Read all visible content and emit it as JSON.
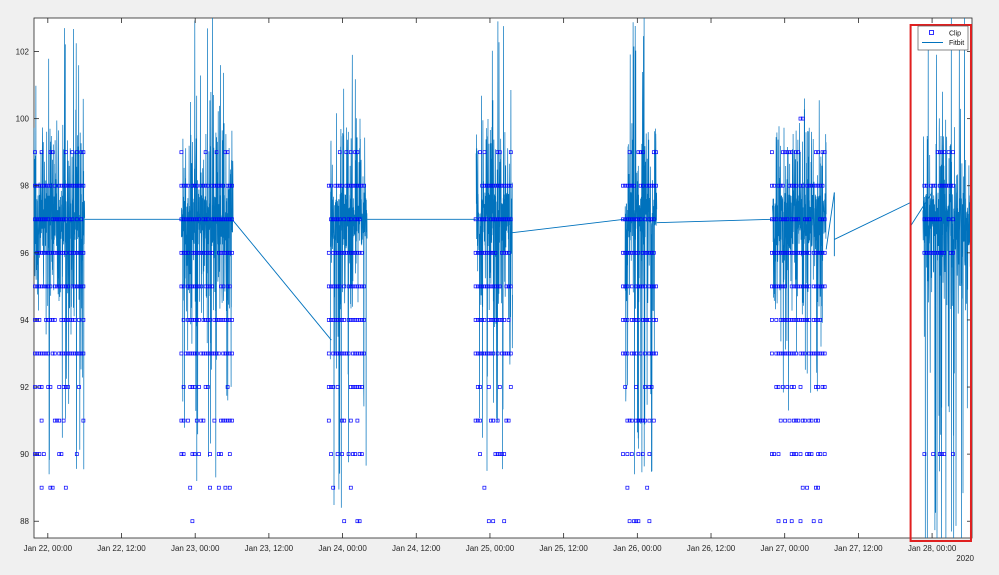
{
  "chart_data": {
    "type": "scatter",
    "x_type": "datetime",
    "x_ticks": [
      "Jan 22, 00:00",
      "Jan 22, 12:00",
      "Jan 23, 00:00",
      "Jan 23, 12:00",
      "Jan 24, 00:00",
      "Jan 24, 12:00",
      "Jan 25, 00:00",
      "Jan 25, 12:00",
      "Jan 26, 00:00",
      "Jan 26, 12:00",
      "Jan 27, 00:00",
      "Jan 27, 12:00",
      "Jan 28, 00:00"
    ],
    "x_year_label": "2020",
    "xlim": [
      "2020-01-21 21:45",
      "2020-01-28 06:30"
    ],
    "ylim": [
      87.5,
      103
    ],
    "y_ticks": [
      88,
      90,
      92,
      94,
      96,
      98,
      100,
      102
    ],
    "grid": false,
    "legend": {
      "entries": [
        "Clip",
        "Fitbit"
      ],
      "location": "top-right"
    },
    "annotation": "red rectangle highlighting Jan 28 data",
    "highlight_box": {
      "x_range": [
        "2020-01-27 20:30",
        "2020-01-28 06:20"
      ],
      "y_range": [
        87.5,
        103
      ]
    },
    "series": [
      {
        "name": "Clip",
        "marker": "square",
        "color": "#0000ff",
        "activity_blocks": [
          {
            "start": "2020-01-21 21:55",
            "end": "2020-01-22 06:00",
            "values": [
              97,
              98,
              96,
              95,
              94,
              93,
              92,
              91,
              90,
              89,
              99
            ]
          },
          {
            "start": "2020-01-22 21:45",
            "end": "2020-01-23 06:10",
            "values": [
              88,
              89,
              90,
              91,
              92,
              93,
              94,
              95,
              96,
              97,
              98,
              99
            ]
          },
          {
            "start": "2020-01-23 21:45",
            "end": "2020-01-24 03:30",
            "values": [
              88,
              89,
              90,
              91,
              92,
              93,
              94,
              95,
              96,
              97,
              98,
              99
            ]
          },
          {
            "start": "2020-01-24 21:40",
            "end": "2020-01-25 03:40",
            "values": [
              88,
              89,
              90,
              91,
              92,
              93,
              94,
              95,
              96,
              97,
              98,
              99
            ]
          },
          {
            "start": "2020-01-25 21:40",
            "end": "2020-01-26 03:10",
            "values": [
              88,
              89,
              90,
              91,
              92,
              93,
              94,
              95,
              96,
              97,
              98,
              99
            ]
          },
          {
            "start": "2020-01-26 21:55",
            "end": "2020-01-27 06:45",
            "values": [
              88,
              89,
              90,
              91,
              92,
              93,
              94,
              95,
              96,
              97,
              98,
              99,
              100
            ]
          },
          {
            "start": "2020-01-27 22:45",
            "end": "2020-01-28 03:30",
            "values": [
              90,
              96,
              97,
              98,
              99
            ]
          }
        ]
      },
      {
        "name": "Fitbit",
        "marker": "line",
        "color": "#0072bd",
        "baseline": 97,
        "activity_blocks": [
          {
            "start": "2020-01-21 21:45",
            "end": "2020-01-22 06:00",
            "min": 89.4,
            "max": 102.7
          },
          {
            "start": "2020-01-22 21:45",
            "end": "2020-01-23 06:10",
            "min": 89.2,
            "max": 103.5
          },
          {
            "start": "2020-01-23 22:00",
            "end": "2020-01-24 04:00",
            "min": 88.4,
            "max": 101.9
          },
          {
            "start": "2020-01-24 21:45",
            "end": "2020-01-25 03:40",
            "min": 89.5,
            "max": 102.9
          },
          {
            "start": "2020-01-25 22:00",
            "end": "2020-01-26 03:10",
            "min": 89.4,
            "max": 103.3
          },
          {
            "start": "2020-01-26 22:00",
            "end": "2020-01-27 06:45",
            "min": 91.3,
            "max": 100.6
          },
          {
            "start": "2020-01-27 22:30",
            "end": "2020-01-28 06:15",
            "min": 86.0,
            "max": 103.5
          }
        ],
        "connectors": [
          [
            "2020-01-22 06:00",
            97.0,
            "2020-01-22 22:00",
            97.0
          ],
          [
            "2020-01-23 06:00",
            97.0,
            "2020-01-23 22:10",
            93.4
          ],
          [
            "2020-01-24 04:00",
            97.0,
            "2020-01-24 21:45",
            97.0
          ],
          [
            "2020-01-25 03:40",
            96.6,
            "2020-01-25 21:50",
            97.0
          ],
          [
            "2020-01-26 03:10",
            96.9,
            "2020-01-26 21:55",
            97.0
          ],
          [
            "2020-01-27 06:45",
            96.1,
            "2020-01-27 08:05",
            97.8
          ],
          [
            "2020-01-27 08:05",
            97.8,
            "2020-01-27 08:05",
            95.9
          ],
          [
            "2020-01-27 08:05",
            96.4,
            "2020-01-27 20:30",
            97.5
          ],
          [
            "2020-01-27 20:30",
            97.5,
            "2020-01-27 20:30",
            96.8
          ],
          [
            "2020-01-27 20:30",
            96.8,
            "2020-01-28 00:00",
            97.8
          ]
        ]
      }
    ]
  }
}
